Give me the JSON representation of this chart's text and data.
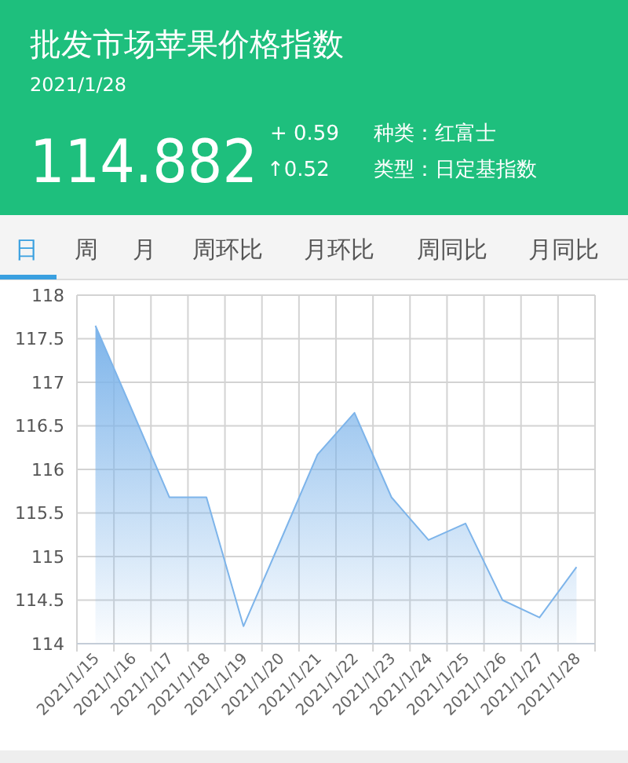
{
  "chart_data": [
    {
      "type": "other",
      "title": "批发市场苹果价格指数",
      "subtitle": "2021/1/28",
      "annotations": [
        "114.882",
        "+ 0.59",
        "↑0.52",
        "种类：红富士",
        "类型：日定基指数",
        "日",
        "周",
        "月",
        "周环比",
        "月环比",
        "周同比",
        "月同比"
      ]
    },
    {
      "type": "area",
      "categories": [
        "2021/1/15",
        "2021/1/16",
        "2021/1/17",
        "2021/1/18",
        "2021/1/19",
        "2021/1/20",
        "2021/1/21",
        "2021/1/22",
        "2021/1/23",
        "2021/1/24",
        "2021/1/25",
        "2021/1/26",
        "2021/1/27",
        "2021/1/28"
      ],
      "series": [
        {
          "color": "#7db4ea",
          "values": [
            117.65,
            116.67,
            115.68,
            115.68,
            114.2,
            115.18,
            116.17,
            116.65,
            115.68,
            115.19,
            115.38,
            114.5,
            114.3,
            114.88
          ]
        }
      ],
      "ylim": [
        114,
        118
      ],
      "yticks": [
        114,
        114.5,
        115,
        115.5,
        116,
        116.5,
        117,
        117.5,
        118
      ],
      "grid": true
    }
  ]
}
